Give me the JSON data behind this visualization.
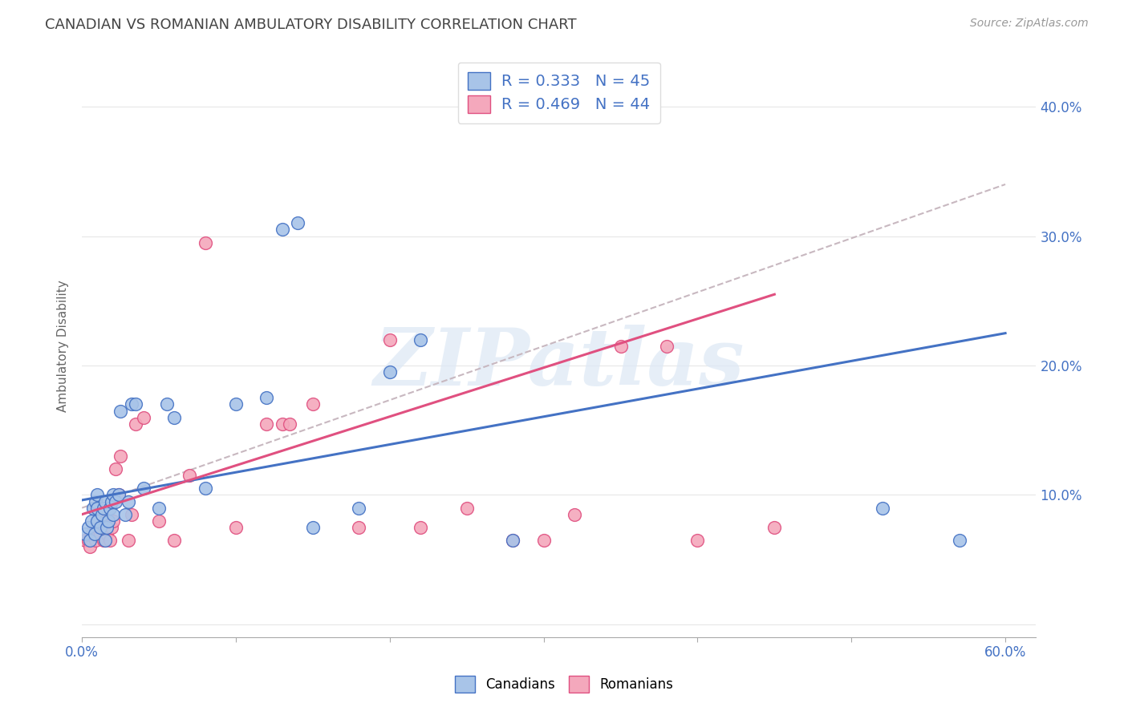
{
  "title": "CANADIAN VS ROMANIAN AMBULATORY DISABILITY CORRELATION CHART",
  "source": "Source: ZipAtlas.com",
  "ylabel": "Ambulatory Disability",
  "xlim": [
    0.0,
    0.62
  ],
  "ylim": [
    -0.01,
    0.44
  ],
  "xticks": [
    0.0,
    0.1,
    0.2,
    0.3,
    0.4,
    0.5,
    0.6
  ],
  "yticks": [
    0.0,
    0.1,
    0.2,
    0.3,
    0.4
  ],
  "right_ytick_labels": [
    "",
    "10.0%",
    "20.0%",
    "30.0%",
    "40.0%"
  ],
  "xtick_labels_show": [
    "0.0%",
    "",
    "",
    "",
    "",
    "",
    "60.0%"
  ],
  "watermark": "ZIPatlas",
  "canadian_color": "#a8c4e8",
  "romanian_color": "#f4a8bc",
  "canadian_line_color": "#4472c4",
  "romanian_line_color": "#e05080",
  "dashed_line_color": "#c8b8c0",
  "background_color": "#ffffff",
  "grid_color": "#e8e8e8",
  "canadians_x": [
    0.002,
    0.004,
    0.005,
    0.006,
    0.007,
    0.008,
    0.009,
    0.01,
    0.01,
    0.01,
    0.012,
    0.013,
    0.014,
    0.015,
    0.015,
    0.016,
    0.017,
    0.018,
    0.019,
    0.02,
    0.02,
    0.022,
    0.024,
    0.025,
    0.028,
    0.03,
    0.032,
    0.035,
    0.04,
    0.05,
    0.055,
    0.06,
    0.08,
    0.1,
    0.12,
    0.13,
    0.14,
    0.15,
    0.18,
    0.2,
    0.22,
    0.28,
    0.35,
    0.52,
    0.57
  ],
  "canadians_y": [
    0.07,
    0.075,
    0.065,
    0.08,
    0.09,
    0.07,
    0.095,
    0.08,
    0.09,
    0.1,
    0.075,
    0.085,
    0.09,
    0.065,
    0.095,
    0.075,
    0.08,
    0.09,
    0.095,
    0.085,
    0.1,
    0.095,
    0.1,
    0.165,
    0.085,
    0.095,
    0.17,
    0.17,
    0.105,
    0.09,
    0.17,
    0.16,
    0.105,
    0.17,
    0.175,
    0.305,
    0.31,
    0.075,
    0.09,
    0.195,
    0.22,
    0.065,
    0.395,
    0.09,
    0.065
  ],
  "romanians_x": [
    0.002,
    0.004,
    0.005,
    0.006,
    0.008,
    0.009,
    0.01,
    0.01,
    0.012,
    0.013,
    0.014,
    0.015,
    0.015,
    0.016,
    0.018,
    0.019,
    0.02,
    0.022,
    0.024,
    0.025,
    0.03,
    0.032,
    0.035,
    0.04,
    0.05,
    0.06,
    0.07,
    0.08,
    0.1,
    0.12,
    0.13,
    0.135,
    0.15,
    0.18,
    0.2,
    0.22,
    0.25,
    0.28,
    0.3,
    0.32,
    0.35,
    0.38,
    0.4,
    0.45
  ],
  "romanians_y": [
    0.065,
    0.065,
    0.06,
    0.07,
    0.07,
    0.065,
    0.07,
    0.075,
    0.07,
    0.075,
    0.065,
    0.065,
    0.08,
    0.07,
    0.065,
    0.075,
    0.08,
    0.12,
    0.1,
    0.13,
    0.065,
    0.085,
    0.155,
    0.16,
    0.08,
    0.065,
    0.115,
    0.295,
    0.075,
    0.155,
    0.155,
    0.155,
    0.17,
    0.075,
    0.22,
    0.075,
    0.09,
    0.065,
    0.065,
    0.085,
    0.215,
    0.215,
    0.065,
    0.075
  ],
  "can_line_x0": 0.0,
  "can_line_x1": 0.6,
  "can_line_y0": 0.096,
  "can_line_y1": 0.225,
  "rom_line_x0": 0.0,
  "rom_line_x1": 0.45,
  "rom_line_y0": 0.085,
  "rom_line_y1": 0.255,
  "dash_line_x0": 0.0,
  "dash_line_x1": 0.6,
  "dash_line_y0": 0.09,
  "dash_line_y1": 0.34,
  "legend_label_canadian": "R = 0.333   N = 45",
  "legend_label_romanian": "R = 0.469   N = 44"
}
